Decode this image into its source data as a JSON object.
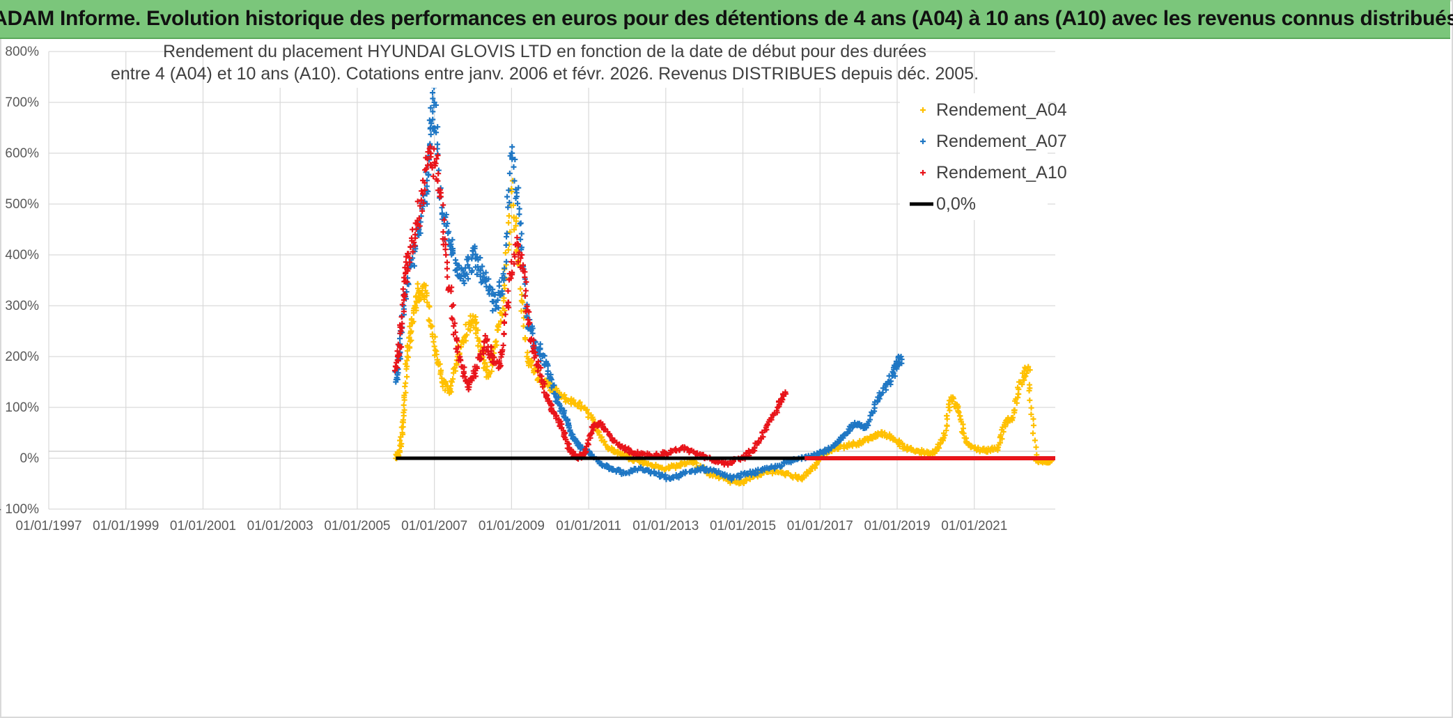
{
  "banner": {
    "title": "ADAM Informe. Evolution historique des performances en euros pour des détentions de 4 ans (A04) à 10 ans (A10) avec les revenus connus distribués"
  },
  "chart_data": {
    "type": "scatter",
    "title_lines": [
      "Rendement du placement HYUNDAI GLOVIS LTD en fonction de la date de début pour des durées",
      "entre 4 (A04) et 10 ans (A10). Cotations entre janv. 2006 et févr. 2026. Revenus DISTRIBUES depuis déc. 2005."
    ],
    "xlabel": "",
    "ylabel": "",
    "x_range": [
      1997.0,
      2023.1
    ],
    "ylim": [
      -100,
      800
    ],
    "y_ticks": [
      -100,
      0,
      100,
      200,
      300,
      400,
      500,
      600,
      700,
      800
    ],
    "y_tick_labels": [
      "- 100%",
      "0%",
      "100%",
      "200%",
      "300%",
      "400%",
      "500%",
      "600%",
      "700%",
      "800%"
    ],
    "x_ticks": [
      1997,
      1999,
      2001,
      2003,
      2005,
      2007,
      2009,
      2011,
      2013,
      2015,
      2017,
      2019,
      2021
    ],
    "x_tick_labels": [
      "01/01/1997",
      "01/01/1999",
      "01/01/2001",
      "01/01/2003",
      "01/01/2005",
      "01/01/2007",
      "01/01/2009",
      "01/01/2011",
      "01/01/2013",
      "01/01/2015",
      "01/01/2017",
      "01/01/2019",
      "01/01/2021"
    ],
    "grid": true,
    "legend_position": "top-right",
    "series": [
      {
        "name": "Rendement_A04",
        "color": "#ffc000",
        "marker": "plus",
        "x": [
          2006.0,
          2006.1,
          2006.2,
          2006.3,
          2006.4,
          2006.5,
          2006.6,
          2006.8,
          2007.0,
          2007.2,
          2007.4,
          2007.6,
          2007.8,
          2008.0,
          2008.2,
          2008.4,
          2008.6,
          2008.8,
          2009.0,
          2009.2,
          2009.4,
          2009.6,
          2009.8,
          2010.0,
          2010.3,
          2010.6,
          2010.9,
          2011.2,
          2011.5,
          2011.8,
          2012.1,
          2012.5,
          2012.9,
          2013.3,
          2013.7,
          2014.1,
          2014.5,
          2014.9,
          2015.3,
          2015.7,
          2016.1,
          2016.5,
          2016.8,
          2017.1,
          2017.4,
          2017.7,
          2018.0,
          2018.3,
          2018.6,
          2018.9,
          2019.2,
          2019.5,
          2019.8,
          2020.0,
          2020.2,
          2020.4,
          2020.6,
          2020.8,
          2021.0,
          2021.3,
          2021.6,
          2021.8,
          2022.0,
          2022.2,
          2022.4,
          2022.6,
          2022.8,
          2023.0
        ],
        "y": [
          0,
          15,
          90,
          200,
          250,
          300,
          330,
          320,
          220,
          150,
          130,
          200,
          240,
          280,
          220,
          160,
          230,
          310,
          530,
          380,
          200,
          170,
          150,
          140,
          120,
          110,
          100,
          60,
          20,
          10,
          0,
          -10,
          -20,
          -15,
          -5,
          -30,
          -40,
          -50,
          -35,
          -25,
          -30,
          -40,
          -20,
          10,
          20,
          25,
          30,
          40,
          50,
          40,
          20,
          15,
          10,
          15,
          40,
          120,
          90,
          30,
          20,
          15,
          20,
          70,
          80,
          150,
          180,
          -5,
          -5,
          -5
        ]
      },
      {
        "name": "Rendement_A07",
        "color": "#1f77c4",
        "marker": "plus",
        "x": [
          2006.0,
          2006.1,
          2006.2,
          2006.4,
          2006.6,
          2006.8,
          2006.9,
          2007.0,
          2007.2,
          2007.4,
          2007.6,
          2007.8,
          2008.0,
          2008.2,
          2008.4,
          2008.6,
          2008.8,
          2009.0,
          2009.2,
          2009.4,
          2009.6,
          2009.8,
          2010.0,
          2010.2,
          2010.4,
          2010.6,
          2010.8,
          2011.0,
          2011.3,
          2011.6,
          2011.9,
          2012.3,
          2012.7,
          2013.1,
          2013.5,
          2013.9,
          2014.3,
          2014.7,
          2015.1,
          2015.5,
          2015.9,
          2016.3,
          2016.7,
          2017.0,
          2017.3,
          2017.6,
          2017.9,
          2018.2,
          2018.5,
          2018.8,
          2019.0,
          2019.1
        ],
        "y": [
          150,
          200,
          300,
          380,
          450,
          520,
          650,
          700,
          480,
          420,
          380,
          360,
          400,
          370,
          330,
          300,
          350,
          600,
          480,
          280,
          230,
          200,
          160,
          110,
          80,
          40,
          20,
          10,
          -10,
          -20,
          -30,
          -20,
          -30,
          -40,
          -30,
          -20,
          -25,
          -40,
          -30,
          -25,
          -15,
          -5,
          5,
          10,
          20,
          40,
          70,
          60,
          120,
          150,
          180,
          200
        ]
      },
      {
        "name": "Rendement_A10",
        "color": "#e8141a",
        "marker": "plus",
        "x": [
          2006.0,
          2006.1,
          2006.2,
          2006.3,
          2006.5,
          2006.7,
          2006.9,
          2007.1,
          2007.3,
          2007.5,
          2007.7,
          2007.9,
          2008.1,
          2008.3,
          2008.5,
          2008.7,
          2008.9,
          2009.1,
          2009.3,
          2009.5,
          2009.7,
          2009.9,
          2010.1,
          2010.3,
          2010.5,
          2010.7,
          2010.9,
          2011.1,
          2011.3,
          2011.6,
          2011.9,
          2012.2,
          2012.6,
          2013.0,
          2013.4,
          2013.8,
          2014.2,
          2014.6,
          2015.0,
          2015.3,
          2015.6,
          2015.9,
          2016.1
        ],
        "y": [
          180,
          220,
          320,
          380,
          440,
          520,
          600,
          560,
          400,
          260,
          180,
          140,
          180,
          230,
          200,
          180,
          300,
          420,
          380,
          230,
          180,
          120,
          90,
          60,
          20,
          0,
          10,
          60,
          70,
          40,
          20,
          10,
          5,
          10,
          20,
          10,
          -5,
          -10,
          0,
          20,
          60,
          100,
          130
        ]
      },
      {
        "name": "0,0%",
        "color": "#000000",
        "marker": "line",
        "x": [
          2006.0,
          2016.6
        ],
        "y": [
          0,
          0
        ]
      }
    ]
  }
}
